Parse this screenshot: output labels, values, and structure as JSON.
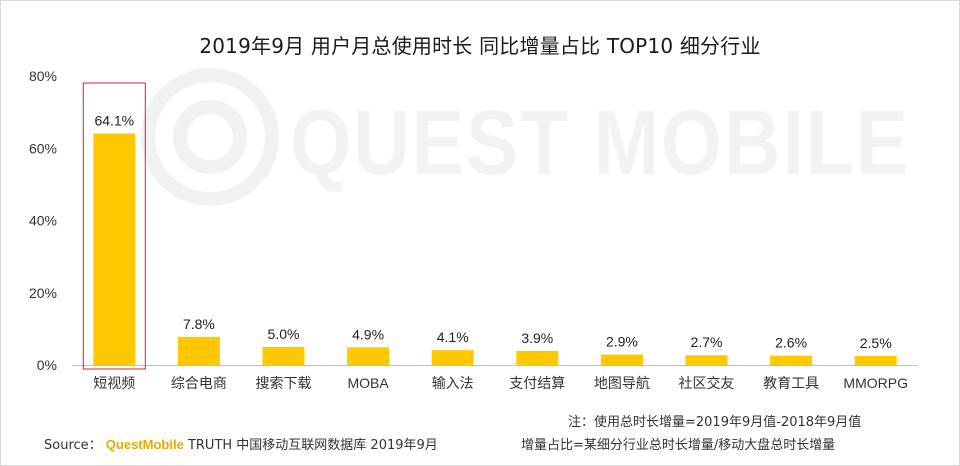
{
  "chart_data": {
    "type": "bar",
    "title": "2019年9月 用户月总使用时长 同比增量占比 TOP10 细分行业",
    "categories": [
      "短视频",
      "综合电商",
      "搜索下载",
      "MOBA",
      "输入法",
      "支付结算",
      "地图导航",
      "社区交友",
      "教育工具",
      "MMORPG"
    ],
    "values": [
      64.1,
      7.8,
      5.0,
      4.9,
      4.1,
      3.9,
      2.9,
      2.7,
      2.6,
      2.5
    ],
    "data_labels": [
      "64.1%",
      "7.8%",
      "5.0%",
      "4.9%",
      "4.1%",
      "3.9%",
      "2.9%",
      "2.7%",
      "2.6%",
      "2.5%"
    ],
    "y_ticks": [
      "0%",
      "20%",
      "40%",
      "60%",
      "80%"
    ],
    "ylim": [
      0,
      80
    ],
    "grid": false,
    "highlight_index": 0,
    "colors": {
      "bar": "#FFC800",
      "highlight_box": "#E02020",
      "axis": "#BFBFBF"
    }
  },
  "watermark": "QUEST MOBILE",
  "notes": {
    "line1": "注：使用总时长增量=2019年9月值-2018年9月值",
    "line2": "增量占比=某细分行业总时长增量/移动大盘总时长增量"
  },
  "source": {
    "label": "Source：",
    "brand": "QuestMobile",
    "rest": " TRUTH 中国移动互联网数据库 2019年9月"
  }
}
